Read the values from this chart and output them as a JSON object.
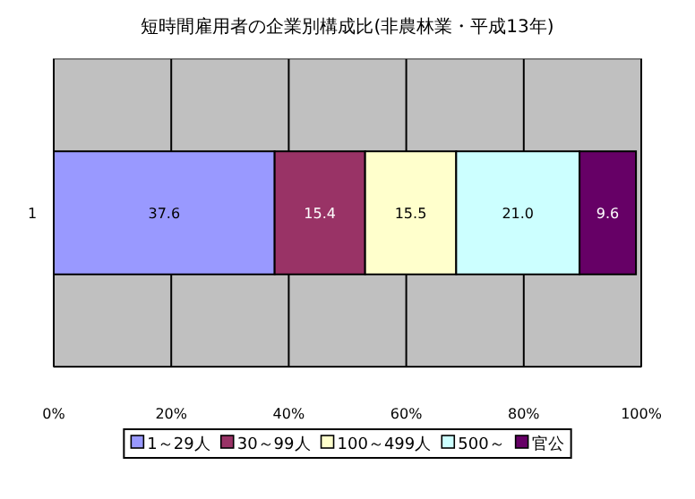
{
  "chart_data": {
    "type": "bar",
    "orientation": "horizontal",
    "stacked": true,
    "title": "短時間雇用者の企業別構成比(非農林業・平成13年)",
    "categories": [
      "1"
    ],
    "series": [
      {
        "name": "1～29人",
        "color": "#9999ff",
        "values": [
          37.6
        ],
        "value_labels": [
          "37.6"
        ]
      },
      {
        "name": "30～99人",
        "color": "#993366",
        "values": [
          15.4
        ],
        "value_labels": [
          "15.4"
        ]
      },
      {
        "name": "100～499人",
        "color": "#ffffcc",
        "values": [
          15.5
        ],
        "value_labels": [
          "15.5"
        ]
      },
      {
        "name": "500～",
        "color": "#ccffff",
        "values": [
          21.0
        ],
        "value_labels": [
          "21.0"
        ]
      },
      {
        "name": "官公",
        "color": "#660066",
        "values": [
          9.6
        ],
        "value_labels": [
          "9.6"
        ]
      }
    ],
    "xlim": [
      0,
      100
    ],
    "xticks": [
      {
        "value": 0,
        "label": "0%"
      },
      {
        "value": 20,
        "label": "20%"
      },
      {
        "value": 40,
        "label": "40%"
      },
      {
        "value": 60,
        "label": "60%"
      },
      {
        "value": 80,
        "label": "80%"
      },
      {
        "value": 100,
        "label": "100%"
      }
    ],
    "grid": "x",
    "legend": "bottom"
  }
}
